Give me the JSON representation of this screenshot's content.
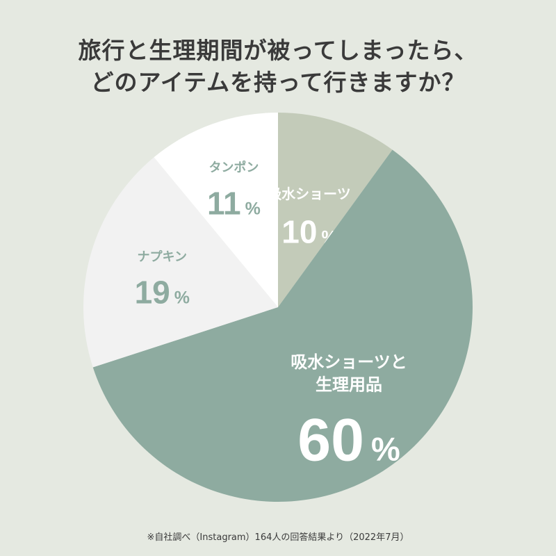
{
  "title_lines": [
    "旅行と生理期間が被ってしまったら、",
    "どのアイテムを持って行きますか？"
  ],
  "chart_data": {
    "type": "pie",
    "title": "旅行と生理期間が被ってしまったら、どのアイテムを持って行きますか？",
    "unit": "%",
    "slices": [
      {
        "label": [
          "吸水ショーツ"
        ],
        "value": 10,
        "color": "#c3cbb9",
        "text_color": "#ffffff"
      },
      {
        "label": [
          "吸水ショーツと",
          "生理用品"
        ],
        "value": 60,
        "color": "#8eaba0",
        "text_color": "#ffffff"
      },
      {
        "label": [
          "ナプキン"
        ],
        "value": 19,
        "color": "#f2f2f2",
        "text_color": "#8eaba0"
      },
      {
        "label": [
          "タンポン"
        ],
        "value": 11,
        "color": "#ffffff",
        "text_color": "#8eaba0"
      }
    ]
  },
  "footnote": "※自社調べ（Instagram）164人の回答結果より（2022年7月）"
}
